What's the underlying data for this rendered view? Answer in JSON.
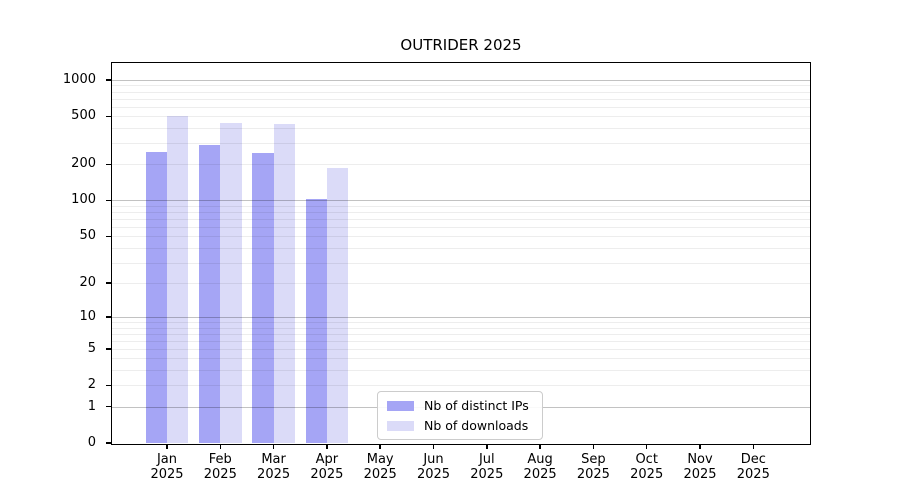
{
  "chart_data": {
    "type": "bar",
    "title": "OUTRIDER 2025",
    "categories": [
      "Jan",
      "Feb",
      "Mar",
      "Apr",
      "May",
      "Jun",
      "Jul",
      "Aug",
      "Sep",
      "Oct",
      "Nov",
      "Dec"
    ],
    "year_label": "2025",
    "series": [
      {
        "name": "Nb of distinct IPs",
        "color": "#a5a5f5",
        "values": [
          255,
          290,
          248,
          103,
          0,
          0,
          0,
          0,
          0,
          0,
          0,
          0
        ]
      },
      {
        "name": "Nb of downloads",
        "color": "#dbdbf8",
        "values": [
          500,
          438,
          430,
          186,
          0,
          0,
          0,
          0,
          0,
          0,
          0,
          0
        ]
      }
    ],
    "yscale": "log1p",
    "yticks": [
      0,
      1,
      2,
      5,
      10,
      20,
      50,
      100,
      200,
      500,
      1000
    ],
    "major_grid_values": [
      1,
      10,
      100,
      1000
    ],
    "ylim": [
      0,
      1380
    ],
    "xlabel": "",
    "ylabel": "",
    "grid": "both, drawn above bars",
    "legend_position": "inside lower-center-left",
    "colors": {
      "spine": "#000000",
      "major_grid": "#c2c2c2",
      "minor_grid": "#ededed",
      "background": "#ffffff"
    }
  }
}
